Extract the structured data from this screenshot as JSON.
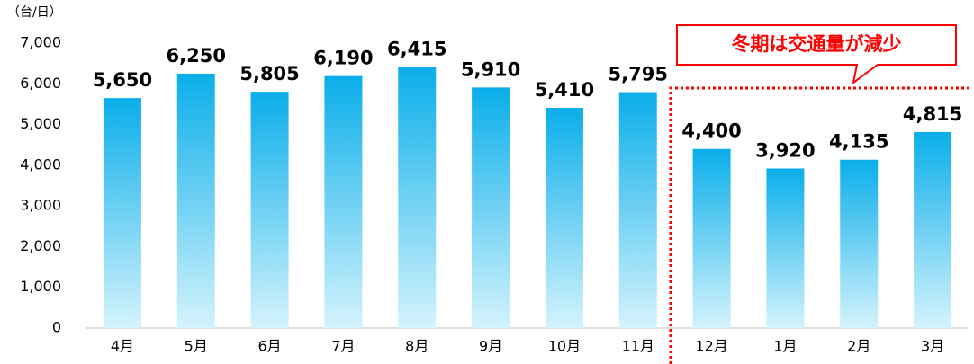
{
  "chart_data": {
    "type": "bar",
    "y_axis_label": "（台/日）",
    "annotation": "冬期は交通量が減少",
    "categories": [
      "4月",
      "5月",
      "6月",
      "7月",
      "8月",
      "9月",
      "10月",
      "11月",
      "12月",
      "1月",
      "2月",
      "3月"
    ],
    "values": [
      5650,
      6250,
      5805,
      6190,
      6415,
      5910,
      5410,
      5795,
      4400,
      3920,
      4135,
      4815
    ],
    "value_labels": [
      "5,650",
      "6,250",
      "5,805",
      "6,190",
      "6,415",
      "5,910",
      "5,410",
      "5,795",
      "4,400",
      "3,920",
      "4,135",
      "4,815"
    ],
    "color": "#0aaeea",
    "ylim": [
      0,
      7000
    ],
    "yticks": [
      0,
      {
        "value": 1000,
        "label": "1,000"
      },
      {
        "value": 2000,
        "label": "2,000"
      },
      {
        "value": 3000,
        "label": "3,000"
      },
      {
        "value": 4000,
        "label": "4,000"
      },
      {
        "value": 5000,
        "label": "5,000"
      },
      {
        "value": 6000,
        "label": "6,000"
      },
      {
        "value": 7000,
        "label": "7,000"
      }
    ],
    "grid": false
  }
}
